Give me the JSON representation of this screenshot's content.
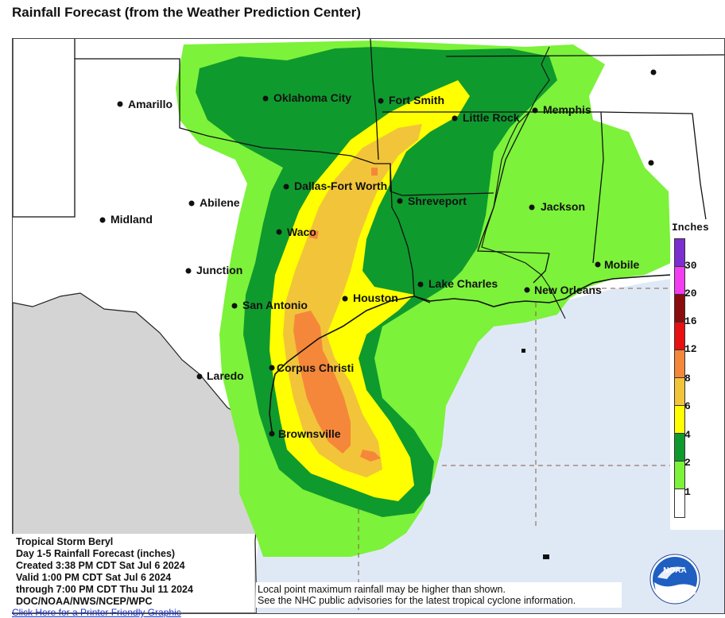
{
  "title": "Rainfall Forecast (from the Weather Prediction Center)",
  "info": {
    "line1": "Tropical Storm Beryl",
    "line2": "Day 1-5 Rainfall Forecast (inches)",
    "line3": "Created 3:38 PM CDT Sat Jul 6 2024",
    "line4": "Valid 1:00 PM CDT Sat Jul 6 2024",
    "line5": "through 7:00 PM CDT Thu Jul 11 2024",
    "line6": "DOC/NOAA/NWS/NCEP/WPC"
  },
  "note": {
    "line1": "Local point maximum rainfall may be higher than shown.",
    "line2": "See the NHC public advisories for the latest tropical cyclone information."
  },
  "printer_link": "Click Here for a Printer Friendly Graphic",
  "legend": {
    "title": "Inches",
    "levels": [
      {
        "label": "30",
        "color": "#7b2fd0"
      },
      {
        "label": "20",
        "color": "#f23df2"
      },
      {
        "label": "16",
        "color": "#8a0c0c"
      },
      {
        "label": "12",
        "color": "#e81010"
      },
      {
        "label": "8",
        "color": "#f5873a"
      },
      {
        "label": "6",
        "color": "#f2c43a"
      },
      {
        "label": "4",
        "color": "#ffff00"
      },
      {
        "label": "2",
        "color": "#0f9a2e"
      },
      {
        "label": "1",
        "color": "#7cf23a"
      },
      {
        "label": "",
        "color": "#ffffff"
      }
    ]
  },
  "cities": [
    {
      "name": "Amarillo"
    },
    {
      "name": "Oklahoma City"
    },
    {
      "name": "Fort Smith"
    },
    {
      "name": "Memphis"
    },
    {
      "name": "Little Rock"
    },
    {
      "name": "Dallas-Fort Worth"
    },
    {
      "name": "Abilene"
    },
    {
      "name": "Midland"
    },
    {
      "name": "Shreveport"
    },
    {
      "name": "Jackson"
    },
    {
      "name": "Waco"
    },
    {
      "name": "Junction"
    },
    {
      "name": "Mobile"
    },
    {
      "name": "Lake Charles"
    },
    {
      "name": "San Antonio"
    },
    {
      "name": "Houston"
    },
    {
      "name": "New Orleans"
    },
    {
      "name": "Laredo"
    },
    {
      "name": "Corpus Christi"
    },
    {
      "name": "Brownsville"
    }
  ],
  "logo_text": "NOAA"
}
